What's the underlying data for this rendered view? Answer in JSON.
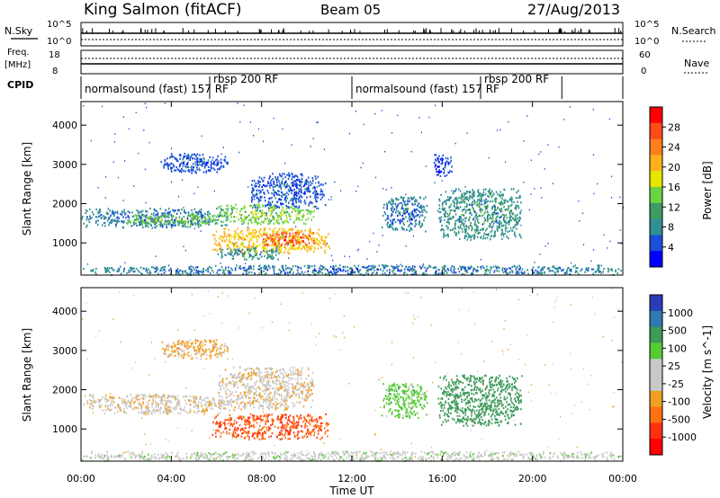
{
  "header": {
    "station": "King Salmon (fitACF)",
    "beam": "Beam 05",
    "date": "27/Aug/2013"
  },
  "params": {
    "nsky_label": "N.Sky",
    "nsearch_label": "N.Search",
    "freq_label_1": "Freq.",
    "freq_label_2": "[MHz]",
    "nave_label": "Nave",
    "cpid_label": "CPID",
    "nsky_ticks": [
      "10^5",
      "10^0"
    ],
    "nsearch_ticks": [
      "10^5",
      "10^0"
    ],
    "freq_ticks": [
      "18",
      "8"
    ],
    "nave_ticks": [
      "60",
      "0"
    ]
  },
  "cpid": [
    {
      "label": "normalsound (fast) 157 RF",
      "start_hour": 0.0
    },
    {
      "label": "rbsp 200 RF",
      "start_hour": 5.7
    },
    {
      "label": "normalsound (fast) 157 RF",
      "start_hour": 12.0
    },
    {
      "label": "rbsp 200 RF",
      "start_hour": 17.7
    },
    {
      "label": "",
      "start_hour": 21.3
    }
  ],
  "chart_data": [
    {
      "type": "heatmap",
      "title": "",
      "xlabel": "Time UT",
      "ylabel": "Slant Range [km]",
      "xlim": [
        0,
        24
      ],
      "ylim": [
        180,
        4600
      ],
      "x_ticks": [
        "00:00",
        "04:00",
        "08:00",
        "12:00",
        "16:00",
        "20:00",
        "00:00"
      ],
      "y_ticks": [
        "1000",
        "2000",
        "3000",
        "4000"
      ],
      "colorbar": {
        "label": "Power [dB]",
        "ticks": [
          "28",
          "24",
          "20",
          "16",
          "12",
          "8",
          "4"
        ],
        "colors": [
          "#ff0000",
          "#ff4a1a",
          "#ff7f1a",
          "#ffb21a",
          "#e6e600",
          "#6ad443",
          "#3f9a63",
          "#2f9090",
          "#1a4fd9",
          "#0000ff"
        ]
      },
      "regions": [
        {
          "t0": 0.0,
          "t1": 6.5,
          "r0": 1400,
          "r1": 1900,
          "level": 8
        },
        {
          "t0": 2.0,
          "t1": 6.0,
          "r0": 1450,
          "r1": 1750,
          "level": 14
        },
        {
          "t0": 6.0,
          "t1": 10.3,
          "r0": 1500,
          "r1": 2000,
          "level": 15
        },
        {
          "t0": 7.5,
          "t1": 10.8,
          "r0": 1900,
          "r1": 2800,
          "level": 6
        },
        {
          "t0": 3.5,
          "t1": 6.5,
          "r0": 2800,
          "r1": 3300,
          "level": 6
        },
        {
          "t0": 5.8,
          "t1": 11.0,
          "r0": 750,
          "r1": 1400,
          "level": 20
        },
        {
          "t0": 8.0,
          "t1": 10.3,
          "r0": 950,
          "r1": 1300,
          "level": 26
        },
        {
          "t0": 6.0,
          "t1": 8.8,
          "r0": 600,
          "r1": 900,
          "level": 10
        },
        {
          "t0": 13.3,
          "t1": 15.3,
          "r0": 1300,
          "r1": 2200,
          "level": 8
        },
        {
          "t0": 15.8,
          "t1": 19.5,
          "r0": 1100,
          "r1": 2400,
          "level": 10
        },
        {
          "t0": 15.6,
          "t1": 16.4,
          "r0": 2700,
          "r1": 3300,
          "level": 5
        },
        {
          "t0": 0.0,
          "t1": 24.0,
          "r0": 200,
          "r1": 450,
          "level": 8
        }
      ]
    },
    {
      "type": "heatmap",
      "title": "",
      "xlabel": "Time UT",
      "ylabel": "Slant Range [km]",
      "xlim": [
        0,
        24
      ],
      "ylim": [
        180,
        4600
      ],
      "x_ticks": [
        "00:00",
        "04:00",
        "08:00",
        "12:00",
        "16:00",
        "20:00",
        "00:00"
      ],
      "y_ticks": [
        "1000",
        "2000",
        "3000",
        "4000"
      ],
      "colorbar": {
        "label": "Velocity [m s^-1]",
        "ticks": [
          "1000",
          "500",
          "100",
          "25",
          "-25",
          "-100",
          "-500",
          "-1000"
        ],
        "colors": [
          "#2a3cb8",
          "#2f7ab0",
          "#3e9a5a",
          "#55cc33",
          "#c8c8c8",
          "#c8c8c8",
          "#f0a020",
          "#ff7010",
          "#ff3010",
          "#ff0000"
        ]
      },
      "regions": [
        {
          "t0": 0.0,
          "t1": 6.5,
          "r0": 1400,
          "r1": 1900,
          "vel": 0
        },
        {
          "t0": 6.0,
          "t1": 10.3,
          "r0": 1500,
          "r1": 2600,
          "vel": 0
        },
        {
          "t0": 3.5,
          "t1": 6.5,
          "r0": 2800,
          "r1": 3300,
          "vel": -50
        },
        {
          "t0": 5.8,
          "t1": 11.0,
          "r0": 750,
          "r1": 1400,
          "vel": -200
        },
        {
          "t0": 13.3,
          "t1": 15.3,
          "r0": 1300,
          "r1": 2200,
          "vel": 150
        },
        {
          "t0": 15.8,
          "t1": 19.5,
          "r0": 1100,
          "r1": 2400,
          "vel": 400
        },
        {
          "t0": 0.0,
          "t1": 24.0,
          "r0": 200,
          "r1": 450,
          "vel": 60
        }
      ]
    }
  ]
}
